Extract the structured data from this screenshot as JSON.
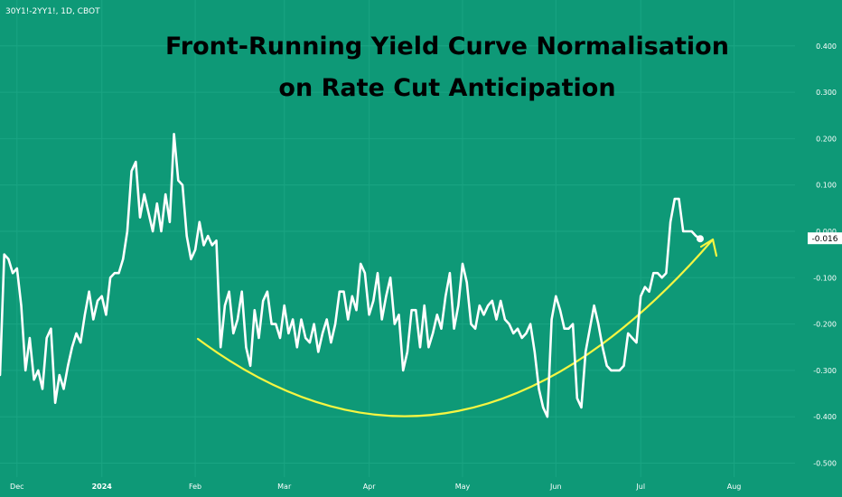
{
  "chart_data": {
    "type": "line",
    "symbol": "30Y1!-2YY1!, 1D, CBOT",
    "title_lines": [
      "Front-Running Yield Curve Normalisation",
      "on Rate Cut Anticipation"
    ],
    "xlabel": "",
    "ylabel": "",
    "ylim": [
      -0.5,
      0.42
    ],
    "y_ticks": [
      "0.400",
      "0.300",
      "0.200",
      "0.100",
      "0.000",
      "-0.100",
      "-0.200",
      "-0.300",
      "-0.400",
      "-0.500"
    ],
    "y_tick_values": [
      0.4,
      0.3,
      0.2,
      0.1,
      0.0,
      -0.1,
      -0.2,
      -0.3,
      -0.4,
      -0.5
    ],
    "x_ticks": [
      {
        "label": "Dec",
        "index": 4,
        "bold": false
      },
      {
        "label": "2024",
        "index": 24,
        "bold": true
      },
      {
        "label": "Feb",
        "index": 46,
        "bold": false
      },
      {
        "label": "Mar",
        "index": 67,
        "bold": false
      },
      {
        "label": "Apr",
        "index": 87,
        "bold": false
      },
      {
        "label": "May",
        "index": 109,
        "bold": false
      },
      {
        "label": "Jun",
        "index": 131,
        "bold": false
      },
      {
        "label": "Jul",
        "index": 151,
        "bold": false
      },
      {
        "label": "Aug",
        "index": 173,
        "bold": false
      }
    ],
    "last_value": "-0.016",
    "accent_color": "#0e9977",
    "line_color": "#ffffff",
    "annotation_color": "#f5f542",
    "series": [
      {
        "values": [
          -0.31,
          -0.05,
          -0.06,
          -0.09,
          -0.08,
          -0.16,
          -0.3,
          -0.23,
          -0.32,
          -0.3,
          -0.34,
          -0.23,
          -0.21,
          -0.37,
          -0.31,
          -0.34,
          -0.29,
          -0.25,
          -0.22,
          -0.24,
          -0.18,
          -0.13,
          -0.19,
          -0.15,
          -0.14,
          -0.18,
          -0.1,
          -0.09,
          -0.09,
          -0.06,
          0.0,
          0.13,
          0.15,
          0.03,
          0.08,
          0.04,
          0.0,
          0.06,
          0.0,
          0.08,
          0.02,
          0.21,
          0.11,
          0.1,
          -0.01,
          -0.06,
          -0.04,
          0.02,
          -0.03,
          -0.01,
          -0.03,
          -0.02,
          -0.25,
          -0.16,
          -0.13,
          -0.22,
          -0.19,
          -0.13,
          -0.25,
          -0.29,
          -0.17,
          -0.23,
          -0.15,
          -0.13,
          -0.2,
          -0.2,
          -0.23,
          -0.16,
          -0.22,
          -0.19,
          -0.25,
          -0.19,
          -0.23,
          -0.24,
          -0.2,
          -0.26,
          -0.22,
          -0.19,
          -0.24,
          -0.2,
          -0.13,
          -0.13,
          -0.19,
          -0.14,
          -0.17,
          -0.07,
          -0.09,
          -0.18,
          -0.15,
          -0.09,
          -0.19,
          -0.14,
          -0.1,
          -0.2,
          -0.18,
          -0.3,
          -0.26,
          -0.17,
          -0.17,
          -0.25,
          -0.16,
          -0.25,
          -0.22,
          -0.18,
          -0.21,
          -0.14,
          -0.09,
          -0.21,
          -0.16,
          -0.07,
          -0.11,
          -0.2,
          -0.21,
          -0.16,
          -0.18,
          -0.16,
          -0.15,
          -0.19,
          -0.15,
          -0.19,
          -0.2,
          -0.22,
          -0.21,
          -0.23,
          -0.22,
          -0.2,
          -0.26,
          -0.34,
          -0.38,
          -0.4,
          -0.19,
          -0.14,
          -0.17,
          -0.21,
          -0.21,
          -0.2,
          -0.36,
          -0.38,
          -0.26,
          -0.21,
          -0.16,
          -0.2,
          -0.25,
          -0.29,
          -0.3,
          -0.3,
          -0.3,
          -0.29,
          -0.22,
          -0.23,
          -0.24,
          -0.14,
          -0.12,
          -0.13,
          -0.09,
          -0.09,
          -0.1,
          -0.09,
          0.02,
          0.07,
          0.07,
          0.0,
          0.0,
          0.0,
          -0.01,
          -0.016
        ]
      }
    ]
  }
}
